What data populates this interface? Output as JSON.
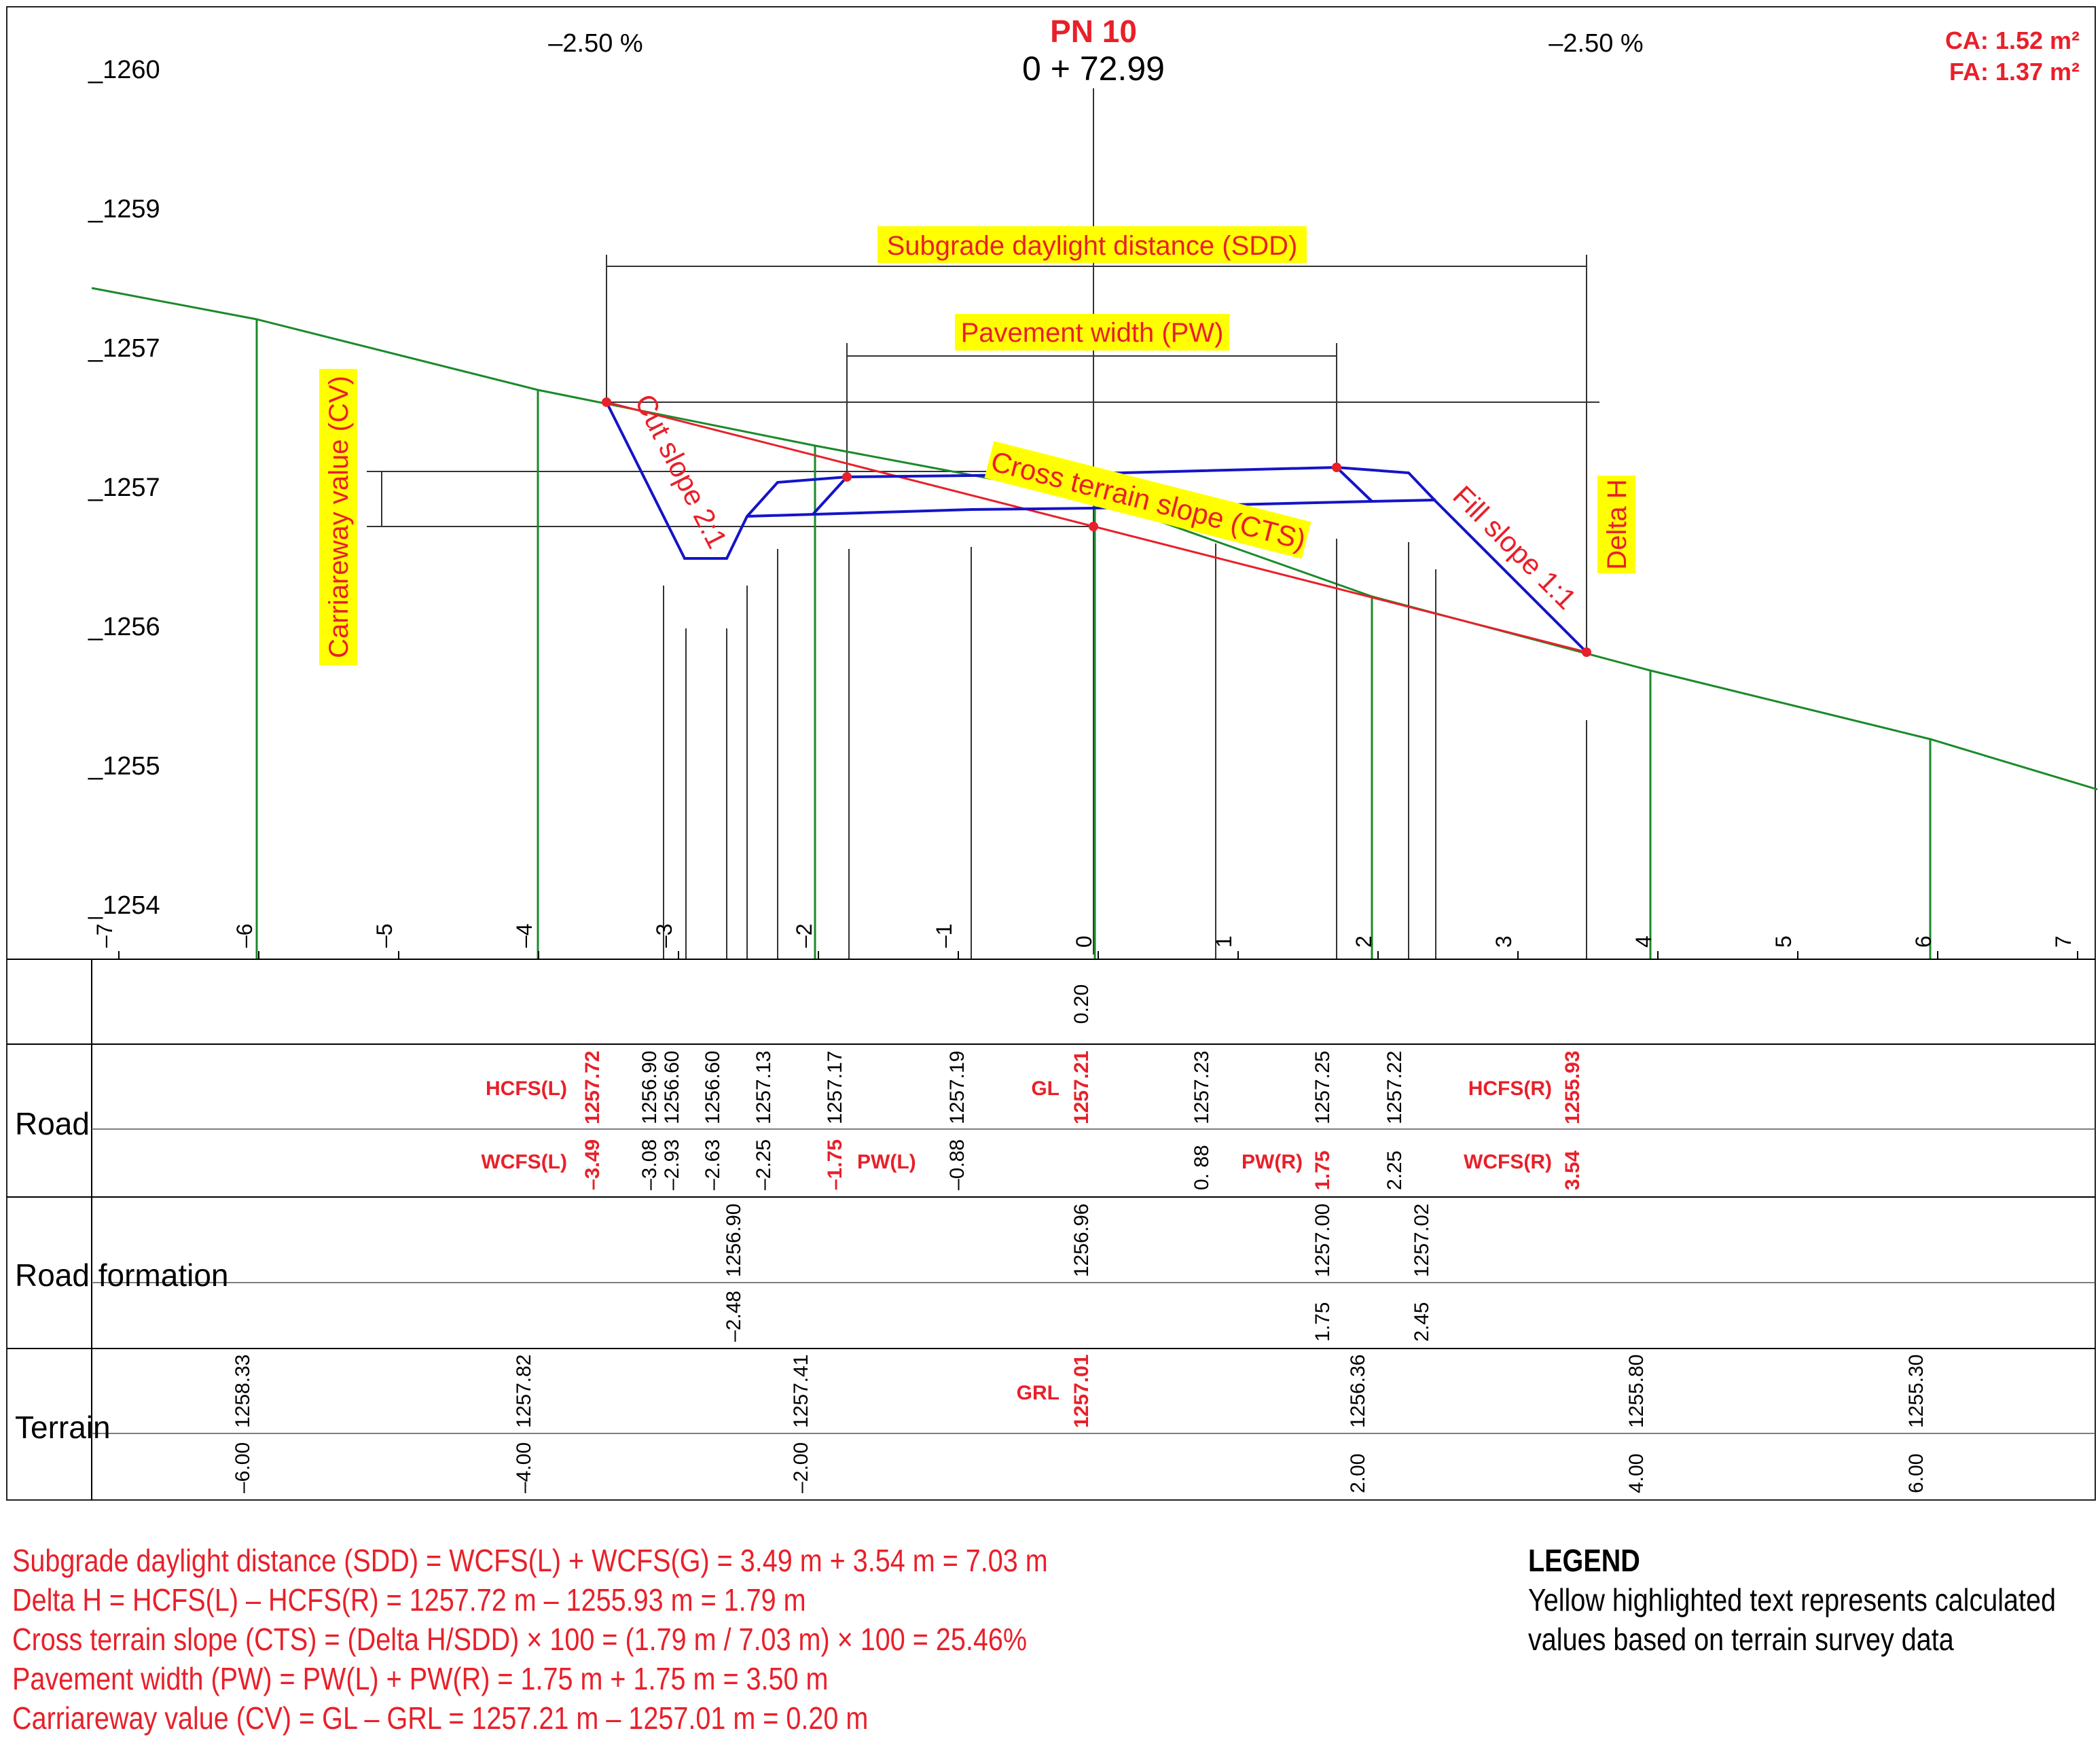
{
  "header": {
    "station_name": "PN 10",
    "chainage": "0 + 72.99",
    "grade_left": "–2.50 %",
    "grade_right": "–2.50 %",
    "cut_area": "CA: 1.52 m²",
    "fill_area": "FA: 1.37 m²"
  },
  "elevation_labels": [
    "_1260",
    "_1259",
    "_1257",
    "_1257",
    "_1256",
    "_1255",
    "_1254"
  ],
  "offset_ticks": [
    "–7",
    "–6",
    "–5",
    "–4",
    "–3",
    "–2",
    "–1",
    "0",
    "1",
    "2",
    "3",
    "4",
    "5",
    "6",
    "7"
  ],
  "annotations": {
    "sdd": "Subgrade daylight distance (SDD)",
    "pw": "Pavement width (PW)",
    "cv": "Carriareway value (CV)",
    "cut_slope": "Cut slope 2:1",
    "cts": "Cross terrain slope (CTS)",
    "fill_slope": "Fill slope 1:1",
    "delta_h": "Delta H"
  },
  "table": {
    "row_labels": {
      "road": "Road",
      "formation": "Road formation",
      "terrain": "Terrain"
    },
    "cv_value": "0.20",
    "road_upper": [
      "1256.90",
      "1256.60",
      "1256.60",
      "1257.13",
      "1257.17",
      "1257.19",
      "1257.23",
      "1257.25",
      "1257.22"
    ],
    "road_lower": [
      "–3.08",
      "–2.93",
      "–2.63",
      "–2.25",
      "–0.88",
      "0. 88",
      "2.25"
    ],
    "road_red": {
      "hcfs_l_label": "HCFS(L)",
      "hcfs_l_value": "1257.72",
      "wcfs_l_label": "WCFS(L)",
      "wcfs_l_value": "–3.49",
      "pw_l_value": "–1.75",
      "pw_l_label": "PW(L)",
      "gl_label": "GL",
      "gl_value": "1257.21",
      "pw_r_label": "PW(R)",
      "pw_r_value": "1.75",
      "hcfs_r_label": "HCFS(R)",
      "hcfs_r_value": "1255.93",
      "wcfs_r_label": "WCFS(R)",
      "wcfs_r_value": "3.54"
    },
    "formation_upper": [
      "1256.90",
      "1256.96",
      "1257.00",
      "1257.02"
    ],
    "formation_lower": [
      "–2.48",
      "1.75",
      "2.45"
    ],
    "terrain_upper": [
      "1258.33",
      "1257.82",
      "1257.41",
      "1256.36",
      "1255.80",
      "1255.30"
    ],
    "terrain_lower": [
      "–6.00",
      "–4.00",
      "–2.00",
      "2.00",
      "4.00",
      "6.00"
    ],
    "terrain_red": {
      "grl_label": "GRL",
      "grl_value": "1257.01"
    }
  },
  "formulas": [
    "Subgrade daylight distance (SDD) = WCFS(L) + WCFS(G) = 3.49 m + 3.54 m = 7.03 m",
    "Delta H = HCFS(L) – HCFS(R) = 1257.72 m – 1255.93 m = 1.79 m",
    "Cross terrain slope (CTS) = (Delta H/SDD) × 100 = (1.79 m / 7.03 m) × 100 = 25.46%",
    "Pavement width (PW) = PW(L) + PW(R) = 1.75 m + 1.75 m = 3.50 m",
    "Carriareway value (CV) = GL – GRL = 1257.21 m – 1257.01 m = 0.20 m"
  ],
  "legend": {
    "title": "LEGEND",
    "lines": [
      "Yellow highlighted text represents calculated",
      "values based on terrain survey data"
    ]
  },
  "colors": {
    "terrain": "#1a8a2a",
    "design": "#1414c8",
    "red": "#e8202a",
    "highlight": "#ffff00"
  }
}
